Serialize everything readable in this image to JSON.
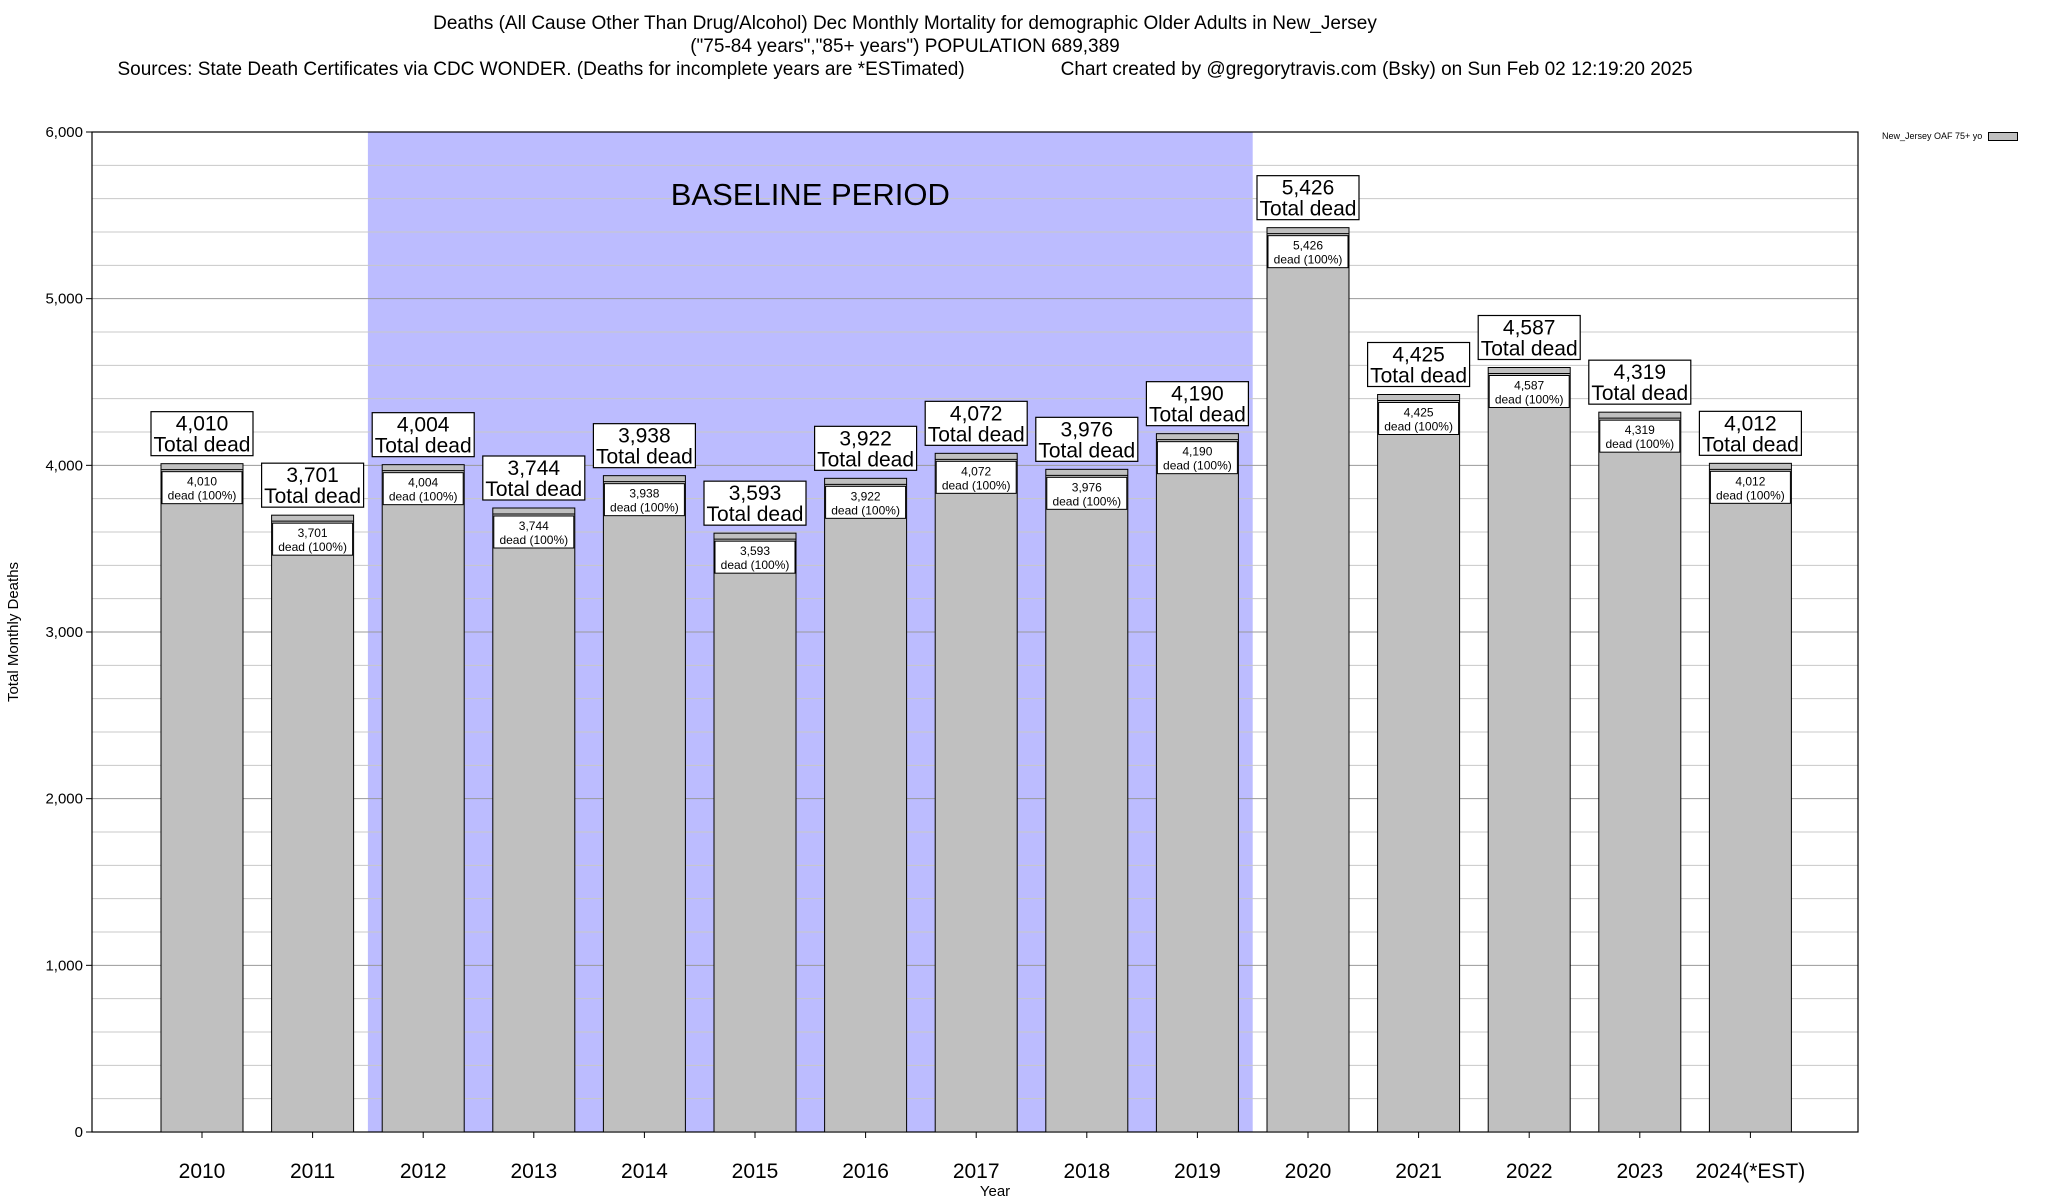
{
  "header": {
    "title_line1": "Deaths (All Cause Other Than Drug/Alcohol) Dec Monthly Mortality for demographic Older Adults in New_Jersey",
    "title_line2": "(\"75-84 years\",\"85+ years\") POPULATION 689,389",
    "sources": "Sources: State Death Certificates via CDC WONDER. (Deaths for incomplete years are *ESTimated)",
    "credit": "Chart created by @gregorytravis.com (Bsky) on Sun Feb 02 12:19:20 2025"
  },
  "legend": {
    "label": "New_Jersey OAF 75+ yo"
  },
  "colors": {
    "bar": "#c0c0c0",
    "baseline": "#bcbcff",
    "grid": "#b0b0b0"
  },
  "chart_data": {
    "type": "bar",
    "xlabel": "Year",
    "ylabel": "Total Monthly Deaths",
    "ylim": [
      0,
      6000
    ],
    "yticks": [
      0,
      1000,
      2000,
      3000,
      4000,
      5000,
      6000
    ],
    "ytick_labels": [
      "0",
      "1,000",
      "2,000",
      "3,000",
      "4,000",
      "5,000",
      "6,000"
    ],
    "categories": [
      "2010",
      "2011",
      "2012",
      "2013",
      "2014",
      "2015",
      "2016",
      "2017",
      "2018",
      "2019",
      "2020",
      "2021",
      "2022",
      "2023",
      "2024(*EST)"
    ],
    "values": [
      4010,
      3701,
      4004,
      3744,
      3938,
      3593,
      3922,
      4072,
      3976,
      4190,
      5426,
      4425,
      4587,
      4319,
      4012
    ],
    "value_labels": [
      "4,010",
      "3,701",
      "4,004",
      "3,744",
      "3,938",
      "3,593",
      "3,922",
      "4,072",
      "3,976",
      "4,190",
      "5,426",
      "4,425",
      "4,587",
      "4,319",
      "4,012"
    ],
    "total_label": "Total dead",
    "inner_label": "dead (100%)",
    "baseline": {
      "label": "BASELINE PERIOD",
      "from": "2012",
      "to": "2019"
    }
  }
}
